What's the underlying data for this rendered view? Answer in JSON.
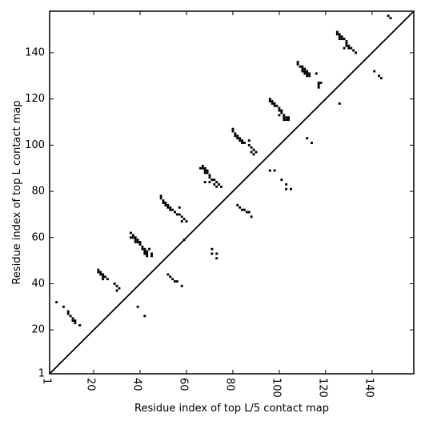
{
  "chart_data": {
    "type": "scatter",
    "title": "",
    "xlabel": "Residue index of top L/5 contact map",
    "ylabel": "Residue index of top L contact map",
    "xlim": [
      1,
      158
    ],
    "ylim": [
      1,
      158
    ],
    "xticks": [
      1,
      20,
      40,
      60,
      80,
      100,
      120,
      140
    ],
    "yticks": [
      1,
      20,
      40,
      60,
      80,
      100,
      120,
      140
    ],
    "diagonal": true,
    "grid": false,
    "marker_color": "#000000",
    "points": [
      [
        4,
        32
      ],
      [
        7,
        30
      ],
      [
        9,
        28
      ],
      [
        9,
        27
      ],
      [
        10,
        26
      ],
      [
        11,
        25
      ],
      [
        11,
        24
      ],
      [
        12,
        24
      ],
      [
        12,
        23
      ],
      [
        14,
        22
      ],
      [
        22,
        46
      ],
      [
        22,
        45
      ],
      [
        23,
        45
      ],
      [
        23,
        44
      ],
      [
        24,
        44
      ],
      [
        24,
        43
      ],
      [
        25,
        43
      ],
      [
        24,
        42
      ],
      [
        26,
        42
      ],
      [
        29,
        40
      ],
      [
        30,
        39
      ],
      [
        31,
        38
      ],
      [
        30,
        37
      ],
      [
        36,
        62
      ],
      [
        36,
        60
      ],
      [
        37,
        61
      ],
      [
        37,
        60
      ],
      [
        38,
        60
      ],
      [
        38,
        59
      ],
      [
        39,
        59
      ],
      [
        38,
        58
      ],
      [
        39,
        58
      ],
      [
        40,
        58
      ],
      [
        40,
        57
      ],
      [
        41,
        56
      ],
      [
        41,
        55
      ],
      [
        42,
        55
      ],
      [
        42,
        54
      ],
      [
        43,
        54
      ],
      [
        42,
        53
      ],
      [
        43,
        53
      ],
      [
        44,
        55
      ],
      [
        45,
        53
      ],
      [
        43,
        52
      ],
      [
        45,
        52
      ],
      [
        39,
        30
      ],
      [
        42,
        26
      ],
      [
        49,
        78
      ],
      [
        49,
        77
      ],
      [
        50,
        76
      ],
      [
        50,
        75
      ],
      [
        51,
        75
      ],
      [
        51,
        74
      ],
      [
        52,
        74
      ],
      [
        52,
        73
      ],
      [
        53,
        73
      ],
      [
        53,
        72
      ],
      [
        54,
        72
      ],
      [
        57,
        73
      ],
      [
        55,
        71
      ],
      [
        56,
        70
      ],
      [
        57,
        70
      ],
      [
        58,
        69
      ],
      [
        59,
        68
      ],
      [
        58,
        67
      ],
      [
        60,
        67
      ],
      [
        52,
        44
      ],
      [
        53,
        43
      ],
      [
        54,
        42
      ],
      [
        55,
        41
      ],
      [
        56,
        41
      ],
      [
        58,
        39
      ],
      [
        59,
        59
      ],
      [
        67,
        91
      ],
      [
        66,
        90
      ],
      [
        67,
        90
      ],
      [
        68,
        90
      ],
      [
        68,
        89
      ],
      [
        69,
        89
      ],
      [
        68,
        88
      ],
      [
        69,
        88
      ],
      [
        70,
        87
      ],
      [
        70,
        86
      ],
      [
        71,
        85
      ],
      [
        72,
        85
      ],
      [
        73,
        84
      ],
      [
        74,
        83
      ],
      [
        72,
        83
      ],
      [
        73,
        82
      ],
      [
        75,
        82
      ],
      [
        68,
        84
      ],
      [
        70,
        84
      ],
      [
        71,
        55
      ],
      [
        71,
        53
      ],
      [
        73,
        53
      ],
      [
        73,
        51
      ],
      [
        80,
        107
      ],
      [
        80,
        106
      ],
      [
        81,
        105
      ],
      [
        81,
        104
      ],
      [
        82,
        104
      ],
      [
        82,
        103
      ],
      [
        83,
        103
      ],
      [
        83,
        102
      ],
      [
        84,
        102
      ],
      [
        84,
        101
      ],
      [
        85,
        101
      ],
      [
        87,
        100
      ],
      [
        87,
        102
      ],
      [
        88,
        99
      ],
      [
        89,
        98
      ],
      [
        88,
        97
      ],
      [
        90,
        97
      ],
      [
        89,
        96
      ],
      [
        82,
        74
      ],
      [
        83,
        73
      ],
      [
        84,
        72
      ],
      [
        85,
        72
      ],
      [
        86,
        71
      ],
      [
        87,
        71
      ],
      [
        88,
        69
      ],
      [
        96,
        120
      ],
      [
        96,
        119
      ],
      [
        97,
        119
      ],
      [
        97,
        118
      ],
      [
        98,
        118
      ],
      [
        98,
        117
      ],
      [
        99,
        117
      ],
      [
        100,
        116
      ],
      [
        100,
        115
      ],
      [
        101,
        115
      ],
      [
        101,
        114
      ],
      [
        100,
        113
      ],
      [
        102,
        113
      ],
      [
        102,
        112
      ],
      [
        103,
        112
      ],
      [
        104,
        112
      ],
      [
        102,
        111
      ],
      [
        103,
        111
      ],
      [
        104,
        111
      ],
      [
        96,
        89
      ],
      [
        98,
        89
      ],
      [
        101,
        85
      ],
      [
        103,
        83
      ],
      [
        103,
        81
      ],
      [
        105,
        81
      ],
      [
        108,
        136
      ],
      [
        108,
        135
      ],
      [
        109,
        134
      ],
      [
        110,
        134
      ],
      [
        110,
        133
      ],
      [
        111,
        133
      ],
      [
        110,
        132
      ],
      [
        111,
        132
      ],
      [
        112,
        132
      ],
      [
        111,
        131
      ],
      [
        112,
        131
      ],
      [
        113,
        131
      ],
      [
        112,
        130
      ],
      [
        113,
        130
      ],
      [
        116,
        131
      ],
      [
        117,
        127
      ],
      [
        117,
        126
      ],
      [
        118,
        127
      ],
      [
        117,
        125
      ],
      [
        112,
        103
      ],
      [
        114,
        101
      ],
      [
        126,
        118
      ],
      [
        125,
        149
      ],
      [
        125,
        148
      ],
      [
        126,
        148
      ],
      [
        126,
        147
      ],
      [
        127,
        147
      ],
      [
        126,
        146
      ],
      [
        127,
        146
      ],
      [
        128,
        146
      ],
      [
        129,
        145
      ],
      [
        129,
        144
      ],
      [
        129,
        143
      ],
      [
        130,
        143
      ],
      [
        130,
        142
      ],
      [
        131,
        142
      ],
      [
        128,
        142
      ],
      [
        132,
        141
      ],
      [
        133,
        140
      ],
      [
        141,
        132
      ],
      [
        143,
        130
      ],
      [
        144,
        129
      ],
      [
        147,
        156
      ],
      [
        148,
        155
      ]
    ]
  }
}
